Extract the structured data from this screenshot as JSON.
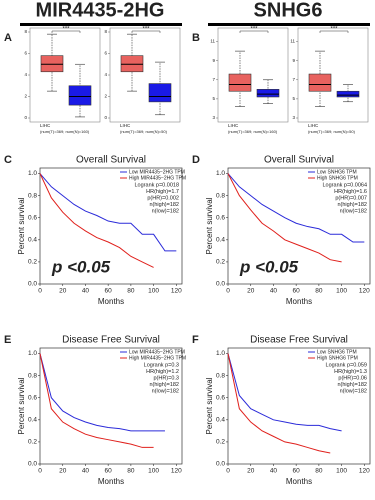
{
  "box_panels": [
    {
      "label": "A",
      "gene": "MIR4435-2HG",
      "plots": [
        {
          "ylim": [
            0,
            8
          ],
          "yticks": [
            0,
            2,
            4,
            6,
            8
          ],
          "stars": "***",
          "category": "LIHC",
          "count_label": "(num(T)=369; num(N)=160)",
          "boxes": [
            {
              "color": "#e8625f",
              "whislo": 2.5,
              "q1": 4.3,
              "median": 5.0,
              "q3": 5.8,
              "whishi": 7.8
            },
            {
              "color": "#1a1ae6",
              "whislo": 0.1,
              "q1": 1.2,
              "median": 2.0,
              "q3": 3.0,
              "whishi": 5.0
            }
          ]
        },
        {
          "ylim": [
            0,
            8
          ],
          "yticks": [
            0,
            2,
            4,
            6,
            8
          ],
          "stars": "***",
          "category": "LIHC",
          "count_label": "(num(T)=369; num(N)=50)",
          "boxes": [
            {
              "color": "#e8625f",
              "whislo": 2.5,
              "q1": 4.3,
              "median": 5.0,
              "q3": 5.8,
              "whishi": 7.8
            },
            {
              "color": "#1a1ae6",
              "whislo": 0.3,
              "q1": 1.5,
              "median": 2.0,
              "q3": 3.2,
              "whishi": 5.2
            }
          ]
        }
      ]
    },
    {
      "label": "B",
      "gene": "SNHG6",
      "plots": [
        {
          "ylim": [
            3,
            12
          ],
          "yticks": [
            3,
            5,
            7,
            9,
            11
          ],
          "stars": "***",
          "category": "LIHC",
          "count_label": "(num(T)=369; num(N)=160)",
          "boxes": [
            {
              "color": "#e8625f",
              "whislo": 4.2,
              "q1": 5.8,
              "median": 6.5,
              "q3": 7.6,
              "whishi": 10.0
            },
            {
              "color": "#1a1ae6",
              "whislo": 4.5,
              "q1": 5.2,
              "median": 5.5,
              "q3": 6.0,
              "whishi": 7.0
            }
          ]
        },
        {
          "ylim": [
            3,
            12
          ],
          "yticks": [
            3,
            5,
            7,
            9,
            11
          ],
          "stars": "***",
          "category": "LIHC",
          "count_label": "(num(T)=369; num(N)=50)",
          "boxes": [
            {
              "color": "#e8625f",
              "whislo": 4.2,
              "q1": 5.8,
              "median": 6.5,
              "q3": 7.6,
              "whishi": 10.0
            },
            {
              "color": "#1a1ae6",
              "whislo": 4.7,
              "q1": 5.2,
              "median": 5.4,
              "q3": 5.8,
              "whishi": 6.5
            }
          ]
        }
      ]
    }
  ],
  "km_panels": [
    {
      "label": "C",
      "title": "Overall Survival",
      "xlabel": "Months",
      "ylabel": "Percent survival",
      "annotation": "p <0.05",
      "stats": [
        "Logrank p=0.0018",
        "HR(high)=1.7",
        "p(HR)=0.002",
        "n(high)=182",
        "n(low)=182"
      ],
      "x": [
        0,
        10,
        20,
        30,
        40,
        50,
        60,
        70,
        80,
        90,
        100,
        110,
        120
      ],
      "xlim": [
        0,
        125
      ],
      "xticks": [
        0,
        20,
        40,
        60,
        80,
        100,
        120
      ],
      "ylim": [
        0,
        1.05
      ],
      "yticks": [
        {
          "value": 0,
          "label": "0.0"
        },
        {
          "value": 0.2,
          "label": "0.2"
        },
        {
          "value": 0.4,
          "label": "0.4"
        },
        {
          "value": 0.6,
          "label": "0.6"
        },
        {
          "value": 0.8,
          "label": "0.8"
        },
        {
          "value": 1,
          "label": "1.0"
        }
      ],
      "series": [
        {
          "name": "Low MIR4435−2HG TPM",
          "color": "#2b2bd9",
          "values": [
            1,
            0.88,
            0.8,
            0.72,
            0.66,
            0.62,
            0.57,
            0.55,
            0.55,
            0.45,
            0.45,
            0.3,
            0.3
          ]
        },
        {
          "name": "High MIR4435−2HG TPM",
          "color": "#e0201c",
          "values": [
            1,
            0.78,
            0.65,
            0.55,
            0.48,
            0.42,
            0.38,
            0.33,
            0.25,
            0.2,
            0.15,
            null,
            null
          ]
        }
      ]
    },
    {
      "label": "D",
      "title": "Overall Survival",
      "xlabel": "Months",
      "ylabel": "Percent survival",
      "annotation": "p <0.05",
      "stats": [
        "Logrank p=0.0064",
        "HR(high)=1.6",
        "p(HR)=0.007",
        "n(high)=182",
        "n(low)=182"
      ],
      "x": [
        0,
        10,
        20,
        30,
        40,
        50,
        60,
        70,
        80,
        90,
        100,
        110,
        120
      ],
      "xlim": [
        0,
        125
      ],
      "xticks": [
        0,
        20,
        40,
        60,
        80,
        100,
        120
      ],
      "ylim": [
        0,
        1.05
      ],
      "yticks": [
        {
          "value": 0,
          "label": "0.0"
        },
        {
          "value": 0.2,
          "label": "0.2"
        },
        {
          "value": 0.4,
          "label": "0.4"
        },
        {
          "value": 0.6,
          "label": "0.6"
        },
        {
          "value": 0.8,
          "label": "0.8"
        },
        {
          "value": 1,
          "label": "1.0"
        }
      ],
      "series": [
        {
          "name": "Low SNHG6 TPM",
          "color": "#2b2bd9",
          "values": [
            1,
            0.88,
            0.8,
            0.72,
            0.66,
            0.6,
            0.55,
            0.52,
            0.5,
            0.45,
            0.45,
            0.38,
            0.38
          ]
        },
        {
          "name": "High SNHG6 TPM",
          "color": "#e0201c",
          "values": [
            1,
            0.8,
            0.67,
            0.55,
            0.48,
            0.4,
            0.36,
            0.32,
            0.28,
            0.22,
            0.2,
            null,
            null
          ]
        }
      ]
    },
    {
      "label": "E",
      "title": "Disease Free Survival",
      "xlabel": "Months",
      "ylabel": "Percent survival",
      "stats": [
        "Logrank p=0.3",
        "HR(high)=1.2",
        "p(HR)=0.3",
        "n(high)=182",
        "n(low)=182"
      ],
      "x": [
        0,
        10,
        20,
        30,
        40,
        50,
        60,
        70,
        80,
        90,
        100,
        110,
        120
      ],
      "xlim": [
        0,
        125
      ],
      "xticks": [
        0,
        20,
        40,
        60,
        80,
        100,
        120
      ],
      "ylim": [
        0,
        1.05
      ],
      "yticks": [
        {
          "value": 0,
          "label": "0.0"
        },
        {
          "value": 0.2,
          "label": "0.2"
        },
        {
          "value": 0.4,
          "label": "0.4"
        },
        {
          "value": 0.6,
          "label": "0.6"
        },
        {
          "value": 0.8,
          "label": "0.8"
        },
        {
          "value": 1,
          "label": "1.0"
        }
      ],
      "series": [
        {
          "name": "Low MIR4435−2HG TPM",
          "color": "#2b2bd9",
          "values": [
            1,
            0.6,
            0.48,
            0.42,
            0.38,
            0.35,
            0.33,
            0.32,
            0.3,
            0.3,
            0.3,
            0.3,
            null
          ]
        },
        {
          "name": "High MIR4435−2HG TPM",
          "color": "#e0201c",
          "values": [
            1,
            0.5,
            0.38,
            0.32,
            0.27,
            0.24,
            0.22,
            0.2,
            0.18,
            0.15,
            0.15,
            null,
            null
          ]
        }
      ]
    },
    {
      "label": "F",
      "title": "Disease Free Survival",
      "xlabel": "Months",
      "ylabel": "Percent survival",
      "stats": [
        "Logrank p=0.059",
        "HR(high)=1.3",
        "p(HR)=0.06",
        "n(high)=182",
        "n(low)=182"
      ],
      "x": [
        0,
        10,
        20,
        30,
        40,
        50,
        60,
        70,
        80,
        90,
        100,
        110,
        120
      ],
      "xlim": [
        0,
        125
      ],
      "xticks": [
        0,
        20,
        40,
        60,
        80,
        100,
        120
      ],
      "ylim": [
        0,
        1.05
      ],
      "yticks": [
        {
          "value": 0,
          "label": "0.0"
        },
        {
          "value": 0.2,
          "label": "0.2"
        },
        {
          "value": 0.4,
          "label": "0.4"
        },
        {
          "value": 0.6,
          "label": "0.6"
        },
        {
          "value": 0.8,
          "label": "0.8"
        },
        {
          "value": 1,
          "label": "1.0"
        }
      ],
      "series": [
        {
          "name": "Low SNHG6 TPM",
          "color": "#2b2bd9",
          "values": [
            1,
            0.62,
            0.5,
            0.45,
            0.4,
            0.38,
            0.36,
            0.35,
            0.35,
            0.32,
            0.3,
            null,
            null
          ]
        },
        {
          "name": "High SNHG6 TPM",
          "color": "#e0201c",
          "values": [
            1,
            0.5,
            0.38,
            0.3,
            0.25,
            0.2,
            0.18,
            0.15,
            0.12,
            0.1,
            null,
            null,
            null
          ]
        }
      ]
    }
  ]
}
